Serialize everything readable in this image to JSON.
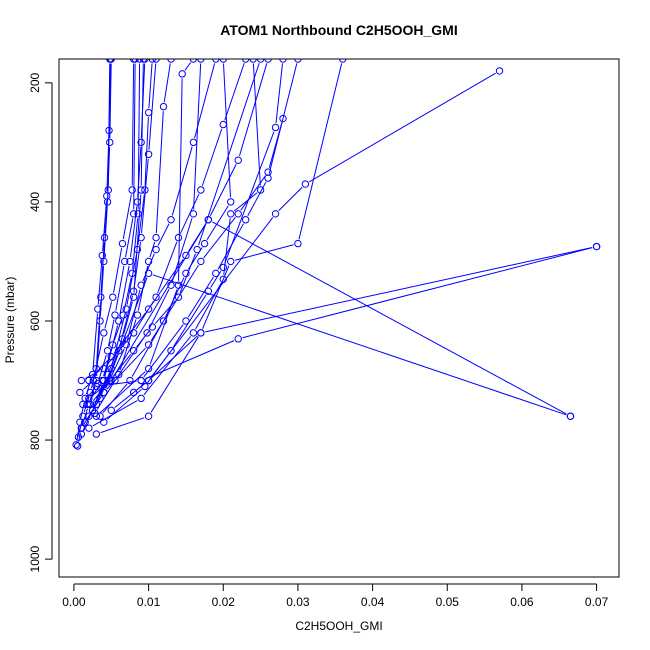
{
  "chart_data": {
    "type": "scatter",
    "title": "ATOM1 Northbound C2H5OOH_GMI",
    "xlabel": "C2H5OOH_GMI",
    "ylabel": "Pressure (mbar)",
    "xlim": [
      -0.002,
      0.073
    ],
    "ylim": [
      1030,
      160
    ],
    "y_axis_inverted": true,
    "x_ticks": [
      0.0,
      0.01,
      0.02,
      0.03,
      0.04,
      0.05,
      0.06,
      0.07
    ],
    "x_tick_labels": [
      "0.00",
      "0.01",
      "0.02",
      "0.03",
      "0.04",
      "0.05",
      "0.06",
      "0.07"
    ],
    "y_ticks": [
      200,
      400,
      600,
      800,
      1000
    ],
    "y_tick_labels": [
      "200",
      "400",
      "600",
      "800",
      "1000"
    ],
    "grid": false,
    "marker": "open-circle",
    "color": "#0000ff",
    "series": [
      {
        "points": [
          [
            0.0005,
            810
          ],
          [
            0.001,
            780
          ],
          [
            0.002,
            740
          ],
          [
            0.003,
            700
          ],
          [
            0.0035,
            600
          ],
          [
            0.004,
            500
          ],
          [
            0.0045,
            400
          ],
          [
            0.0048,
            300
          ],
          [
            0.005,
            160
          ]
        ]
      },
      {
        "points": [
          [
            0.0003,
            808
          ],
          [
            0.0008,
            770
          ],
          [
            0.0015,
            730
          ],
          [
            0.0025,
            690
          ],
          [
            0.0032,
            580
          ],
          [
            0.0038,
            490
          ],
          [
            0.0044,
            390
          ],
          [
            0.0047,
            280
          ],
          [
            0.0049,
            160
          ]
        ]
      },
      {
        "points": [
          [
            0.0006,
            795
          ],
          [
            0.0012,
            760
          ],
          [
            0.0022,
            720
          ],
          [
            0.003,
            680
          ],
          [
            0.0036,
            560
          ],
          [
            0.0041,
            460
          ],
          [
            0.0046,
            380
          ],
          [
            0.0048,
            160
          ]
        ]
      },
      {
        "points": [
          [
            0.001,
            790
          ],
          [
            0.0025,
            750
          ],
          [
            0.004,
            700
          ],
          [
            0.006,
            600
          ],
          [
            0.0075,
            500
          ],
          [
            0.0085,
            400
          ],
          [
            0.009,
            300
          ],
          [
            0.0095,
            160
          ]
        ]
      },
      {
        "points": [
          [
            0.001,
            780
          ],
          [
            0.003,
            740
          ],
          [
            0.005,
            680
          ],
          [
            0.007,
            580
          ],
          [
            0.0085,
            480
          ],
          [
            0.0095,
            380
          ],
          [
            0.01,
            250
          ],
          [
            0.0105,
            160
          ]
        ]
      },
      {
        "points": [
          [
            0.0015,
            770
          ],
          [
            0.0035,
            730
          ],
          [
            0.006,
            650
          ],
          [
            0.008,
            550
          ],
          [
            0.009,
            460
          ],
          [
            0.01,
            320
          ],
          [
            0.011,
            160
          ]
        ]
      },
      {
        "points": [
          [
            0.002,
            760
          ],
          [
            0.004,
            720
          ],
          [
            0.007,
            640
          ],
          [
            0.009,
            540
          ],
          [
            0.011,
            480
          ],
          [
            0.013,
            430
          ],
          [
            0.016,
            300
          ],
          [
            0.019,
            160
          ]
        ]
      },
      {
        "points": [
          [
            0.001,
            700
          ],
          [
            0.004,
            680
          ],
          [
            0.008,
            620
          ],
          [
            0.011,
            560
          ],
          [
            0.014,
            460
          ],
          [
            0.017,
            380
          ],
          [
            0.02,
            270
          ],
          [
            0.023,
            160
          ]
        ]
      },
      {
        "points": [
          [
            0.002,
            700
          ],
          [
            0.005,
            660
          ],
          [
            0.01,
            580
          ],
          [
            0.015,
            490
          ],
          [
            0.018,
            430
          ],
          [
            0.022,
            330
          ],
          [
            0.026,
            160
          ]
        ]
      },
      {
        "points": [
          [
            0.003,
            710
          ],
          [
            0.009,
            700
          ],
          [
            0.015,
            600
          ],
          [
            0.019,
            520
          ],
          [
            0.023,
            430
          ],
          [
            0.026,
            360
          ],
          [
            0.03,
            160
          ]
        ]
      },
      {
        "points": [
          [
            0.004,
            720
          ],
          [
            0.01,
            640
          ],
          [
            0.017,
            500
          ],
          [
            0.022,
            420
          ],
          [
            0.026,
            350
          ],
          [
            0.028,
            260
          ]
        ]
      },
      {
        "points": [
          [
            0.002,
            780
          ],
          [
            0.009,
            730
          ],
          [
            0.016,
            620
          ],
          [
            0.02,
            530
          ],
          [
            0.021,
            420
          ],
          [
            0.025,
            380
          ],
          [
            0.024,
            160
          ]
        ]
      },
      {
        "points": [
          [
            0.003,
            790
          ],
          [
            0.01,
            760
          ],
          [
            0.017,
            620
          ],
          [
            0.021,
            500
          ],
          [
            0.03,
            470
          ],
          [
            0.036,
            160
          ]
        ]
      },
      {
        "points": [
          [
            0.005,
            750
          ],
          [
            0.01,
            700
          ],
          [
            0.027,
            420
          ],
          [
            0.031,
            370
          ],
          [
            0.057,
            180
          ]
        ]
      },
      {
        "points": [
          [
            0.008,
            720
          ],
          [
            0.01,
            700
          ],
          [
            0.017,
            620
          ],
          [
            0.07,
            475
          ]
        ]
      },
      {
        "points": [
          [
            0.009,
            700
          ],
          [
            0.022,
            630
          ],
          [
            0.07,
            475
          ]
        ]
      },
      {
        "points": [
          [
            0.004,
            720
          ],
          [
            0.01,
            520
          ],
          [
            0.0665,
            760
          ]
        ]
      },
      {
        "points": [
          [
            0.005,
            700
          ],
          [
            0.018,
            430
          ],
          [
            0.0665,
            760
          ]
        ]
      },
      {
        "points": [
          [
            0.003,
            760
          ],
          [
            0.01,
            680
          ],
          [
            0.014,
            540
          ],
          [
            0.0145,
            185
          ],
          [
            0.016,
            160
          ]
        ]
      },
      {
        "points": [
          [
            0.002,
            730
          ],
          [
            0.006,
            690
          ],
          [
            0.0085,
            590
          ],
          [
            0.01,
            500
          ],
          [
            0.011,
            460
          ],
          [
            0.012,
            240
          ],
          [
            0.013,
            160
          ]
        ]
      },
      {
        "points": [
          [
            0.0025,
            750
          ],
          [
            0.0045,
            690
          ],
          [
            0.0065,
            630
          ],
          [
            0.008,
            560
          ],
          [
            0.009,
            380
          ],
          [
            0.0093,
            160
          ]
        ]
      },
      {
        "points": [
          [
            0.0018,
            740
          ],
          [
            0.0038,
            700
          ],
          [
            0.0052,
            640
          ],
          [
            0.0066,
            590
          ],
          [
            0.0078,
            520
          ],
          [
            0.0086,
            420
          ],
          [
            0.0088,
            160
          ]
        ]
      },
      {
        "points": [
          [
            0.0012,
            740
          ],
          [
            0.0032,
            705
          ],
          [
            0.0045,
            650
          ],
          [
            0.0055,
            590
          ],
          [
            0.0068,
            500
          ],
          [
            0.008,
            420
          ],
          [
            0.0082,
            160
          ]
        ]
      },
      {
        "points": [
          [
            0.0008,
            720
          ],
          [
            0.0026,
            700
          ],
          [
            0.004,
            620
          ],
          [
            0.0052,
            560
          ],
          [
            0.0065,
            470
          ],
          [
            0.0078,
            380
          ],
          [
            0.008,
            160
          ]
        ]
      },
      {
        "points": [
          [
            0.0028,
            755
          ],
          [
            0.0055,
            700
          ],
          [
            0.0098,
            620
          ],
          [
            0.013,
            540
          ],
          [
            0.016,
            420
          ],
          [
            0.017,
            160
          ]
        ]
      },
      {
        "points": [
          [
            0.0035,
            760
          ],
          [
            0.0075,
            700
          ],
          [
            0.012,
            600
          ],
          [
            0.015,
            520
          ],
          [
            0.0175,
            470
          ],
          [
            0.021,
            400
          ],
          [
            0.02,
            160
          ]
        ]
      },
      {
        "points": [
          [
            0.004,
            770
          ],
          [
            0.0095,
            710
          ],
          [
            0.013,
            650
          ],
          [
            0.018,
            550
          ],
          [
            0.02,
            510
          ],
          [
            0.027,
            275
          ],
          [
            0.028,
            160
          ]
        ]
      },
      {
        "points": [
          [
            0.0022,
            740
          ],
          [
            0.0048,
            700
          ],
          [
            0.008,
            650
          ],
          [
            0.0105,
            610
          ],
          [
            0.014,
            560
          ],
          [
            0.0165,
            480
          ],
          [
            0.025,
            160
          ]
        ]
      }
    ]
  }
}
